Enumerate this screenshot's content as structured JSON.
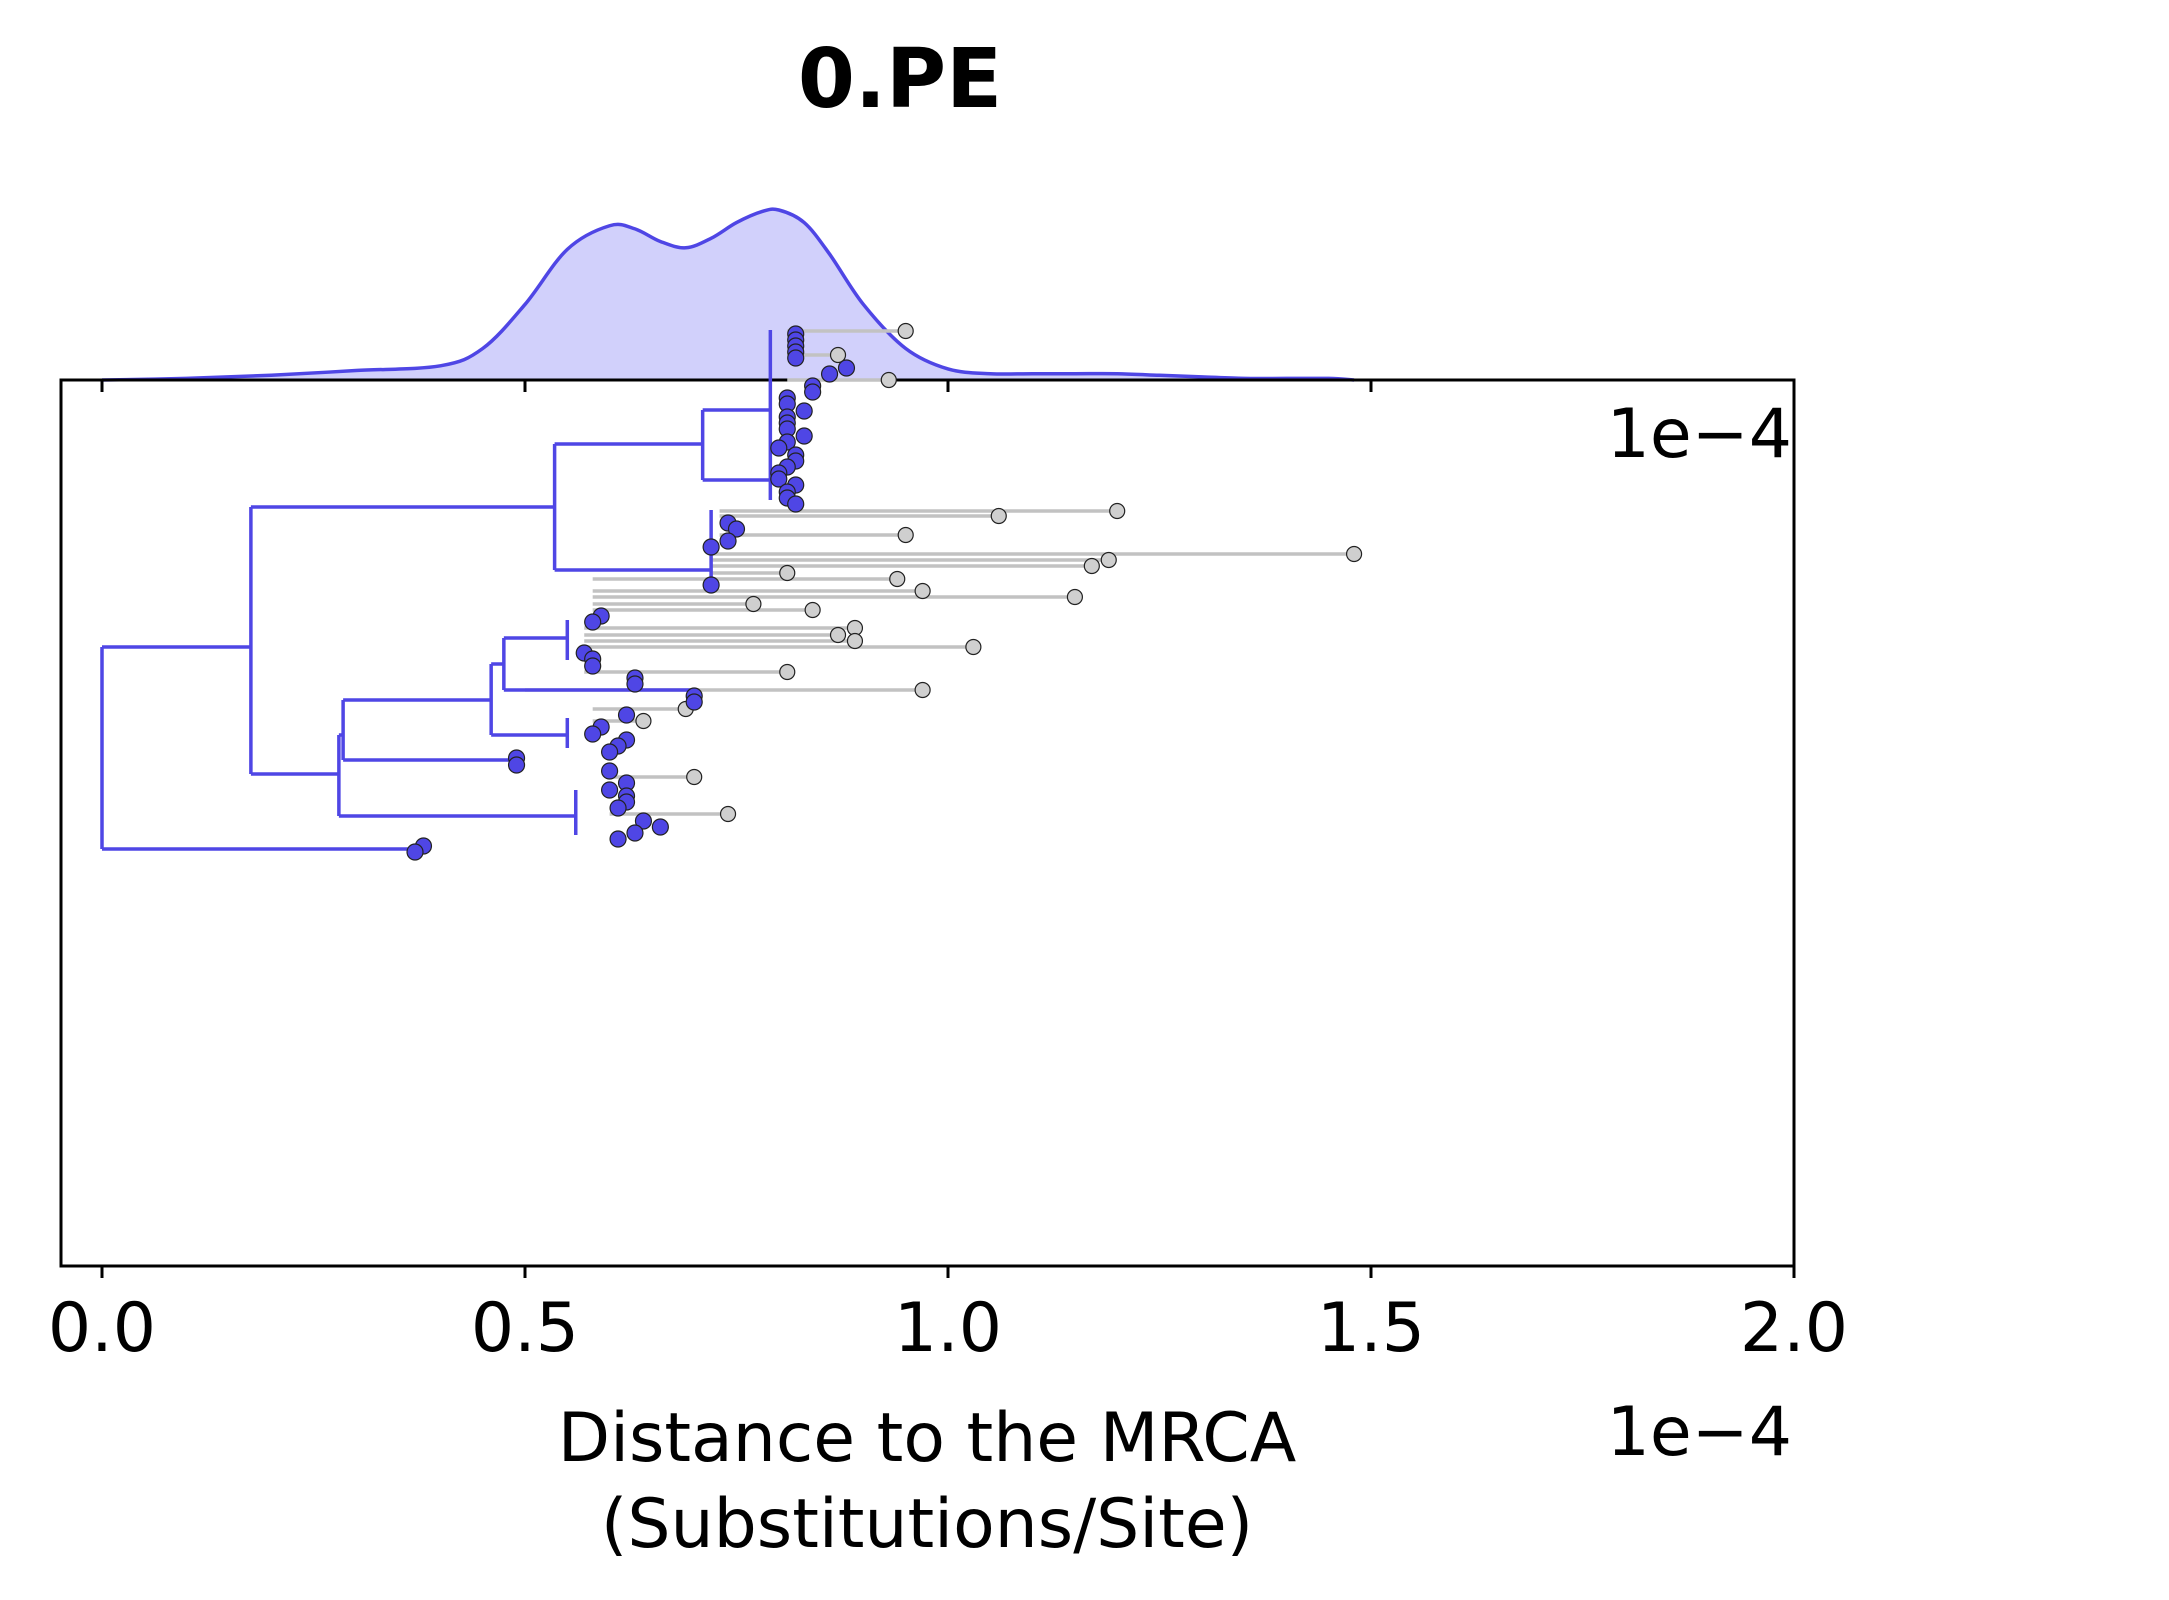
{
  "chart_data": {
    "type": "scatter",
    "subtype": "phylogenetic-tree-with-density",
    "title": "0.PE",
    "xlabel": [
      "Distance to the MRCA",
      "(Substitutions/Site)"
    ],
    "x_scale_label": "1e−4",
    "x_scale_label_top": "1e−4",
    "xlim": [
      -0.05,
      2.0
    ],
    "xticks": [
      0.0,
      0.5,
      1.0,
      1.5,
      2.0
    ],
    "xtick_labels": [
      "0.0",
      "0.5",
      "1.0",
      "1.5",
      "2.0"
    ],
    "grid": false,
    "colors": {
      "highlight": "#4f46e5",
      "highlight_fill": "#d1d0fb",
      "other": "#c2c2c2",
      "other_point": "#cfcfcf"
    },
    "density": {
      "x": [
        0.0,
        0.1,
        0.2,
        0.3,
        0.4,
        0.45,
        0.5,
        0.55,
        0.6,
        0.63,
        0.66,
        0.69,
        0.72,
        0.75,
        0.78,
        0.8,
        0.83,
        0.86,
        0.9,
        0.95,
        1.0,
        1.05,
        1.1,
        1.15,
        1.2,
        1.25,
        1.3,
        1.35,
        1.4,
        1.45,
        1.48
      ],
      "y": [
        0.0,
        0.01,
        0.03,
        0.06,
        0.09,
        0.2,
        0.48,
        0.83,
        0.98,
        0.96,
        0.88,
        0.84,
        0.9,
        1.0,
        1.07,
        1.08,
        1.0,
        0.8,
        0.48,
        0.2,
        0.07,
        0.04,
        0.04,
        0.04,
        0.04,
        0.03,
        0.02,
        0.01,
        0.01,
        0.01,
        0.0
      ]
    },
    "tree": {
      "highlight_segments": [
        {
          "x1": 0.0,
          "y1": 647,
          "x2": 0.0,
          "y2": 849
        },
        {
          "x1": 0.0,
          "y1": 647,
          "x2": 0.176,
          "y2": 647
        },
        {
          "x1": 0.0,
          "y1": 849,
          "x2": 0.38,
          "y2": 849
        },
        {
          "x1": 0.176,
          "y1": 507,
          "x2": 0.176,
          "y2": 774
        },
        {
          "x1": 0.176,
          "y1": 507,
          "x2": 0.535,
          "y2": 507
        },
        {
          "x1": 0.176,
          "y1": 774,
          "x2": 0.28,
          "y2": 774
        },
        {
          "x1": 0.535,
          "y1": 444,
          "x2": 0.535,
          "y2": 570
        },
        {
          "x1": 0.535,
          "y1": 444,
          "x2": 0.71,
          "y2": 444
        },
        {
          "x1": 0.535,
          "y1": 570,
          "x2": 0.72,
          "y2": 570
        },
        {
          "x1": 0.71,
          "y1": 410,
          "x2": 0.71,
          "y2": 480
        },
        {
          "x1": 0.71,
          "y1": 410,
          "x2": 0.79,
          "y2": 410
        },
        {
          "x1": 0.71,
          "y1": 480,
          "x2": 0.79,
          "y2": 480
        },
        {
          "x1": 0.79,
          "y1": 330,
          "x2": 0.79,
          "y2": 500
        },
        {
          "x1": 0.72,
          "y1": 510,
          "x2": 0.72,
          "y2": 585
        },
        {
          "x1": 0.28,
          "y1": 735,
          "x2": 0.28,
          "y2": 816
        },
        {
          "x1": 0.28,
          "y1": 735,
          "x2": 0.285,
          "y2": 735
        },
        {
          "x1": 0.285,
          "y1": 700,
          "x2": 0.285,
          "y2": 760
        },
        {
          "x1": 0.285,
          "y1": 700,
          "x2": 0.46,
          "y2": 700
        },
        {
          "x1": 0.285,
          "y1": 760,
          "x2": 0.49,
          "y2": 760
        },
        {
          "x1": 0.28,
          "y1": 816,
          "x2": 0.56,
          "y2": 816
        },
        {
          "x1": 0.46,
          "y1": 664,
          "x2": 0.46,
          "y2": 735
        },
        {
          "x1": 0.46,
          "y1": 664,
          "x2": 0.475,
          "y2": 664
        },
        {
          "x1": 0.475,
          "y1": 638,
          "x2": 0.475,
          "y2": 690
        },
        {
          "x1": 0.475,
          "y1": 638,
          "x2": 0.55,
          "y2": 638
        },
        {
          "x1": 0.475,
          "y1": 690,
          "x2": 0.7,
          "y2": 690
        },
        {
          "x1": 0.46,
          "y1": 735,
          "x2": 0.55,
          "y2": 735
        },
        {
          "x1": 0.55,
          "y1": 620,
          "x2": 0.55,
          "y2": 660
        },
        {
          "x1": 0.55,
          "y1": 718,
          "x2": 0.55,
          "y2": 748
        },
        {
          "x1": 0.56,
          "y1": 790,
          "x2": 0.56,
          "y2": 835
        }
      ],
      "other_segments": [
        {
          "x1": 0.81,
          "y1": 331,
          "x2": 0.95,
          "y2": 331
        },
        {
          "x1": 0.81,
          "y1": 355,
          "x2": 0.87,
          "y2": 355
        },
        {
          "x1": 0.81,
          "y1": 380,
          "x2": 0.93,
          "y2": 380
        },
        {
          "x1": 0.73,
          "y1": 511,
          "x2": 1.2,
          "y2": 511
        },
        {
          "x1": 0.73,
          "y1": 516,
          "x2": 1.06,
          "y2": 516
        },
        {
          "x1": 0.73,
          "y1": 535,
          "x2": 0.95,
          "y2": 535
        },
        {
          "x1": 0.72,
          "y1": 554,
          "x2": 1.48,
          "y2": 554
        },
        {
          "x1": 0.72,
          "y1": 560,
          "x2": 1.19,
          "y2": 560
        },
        {
          "x1": 0.72,
          "y1": 566,
          "x2": 1.17,
          "y2": 566
        },
        {
          "x1": 0.72,
          "y1": 573,
          "x2": 0.81,
          "y2": 573
        },
        {
          "x1": 0.58,
          "y1": 579,
          "x2": 0.94,
          "y2": 579
        },
        {
          "x1": 0.58,
          "y1": 591,
          "x2": 0.97,
          "y2": 591
        },
        {
          "x1": 0.58,
          "y1": 597,
          "x2": 1.15,
          "y2": 597
        },
        {
          "x1": 0.58,
          "y1": 604,
          "x2": 0.77,
          "y2": 604
        },
        {
          "x1": 0.58,
          "y1": 610,
          "x2": 0.84,
          "y2": 610
        },
        {
          "x1": 0.57,
          "y1": 628,
          "x2": 0.89,
          "y2": 628
        },
        {
          "x1": 0.57,
          "y1": 635,
          "x2": 0.87,
          "y2": 635
        },
        {
          "x1": 0.57,
          "y1": 641,
          "x2": 0.89,
          "y2": 641
        },
        {
          "x1": 0.57,
          "y1": 647,
          "x2": 1.03,
          "y2": 647
        },
        {
          "x1": 0.57,
          "y1": 672,
          "x2": 0.81,
          "y2": 672
        },
        {
          "x1": 0.5,
          "y1": 690,
          "x2": 0.97,
          "y2": 690
        },
        {
          "x1": 0.58,
          "y1": 709,
          "x2": 0.69,
          "y2": 709
        },
        {
          "x1": 0.58,
          "y1": 721,
          "x2": 0.64,
          "y2": 721
        },
        {
          "x1": 0.6,
          "y1": 777,
          "x2": 0.7,
          "y2": 777
        },
        {
          "x1": 0.6,
          "y1": 814,
          "x2": 0.74,
          "y2": 814
        }
      ],
      "highlight_tips": [
        {
          "x": 0.82,
          "y": 334
        },
        {
          "x": 0.82,
          "y": 340
        },
        {
          "x": 0.82,
          "y": 346
        },
        {
          "x": 0.82,
          "y": 352
        },
        {
          "x": 0.82,
          "y": 358
        },
        {
          "x": 0.86,
          "y": 374
        },
        {
          "x": 0.88,
          "y": 368
        },
        {
          "x": 0.84,
          "y": 386
        },
        {
          "x": 0.84,
          "y": 392
        },
        {
          "x": 0.81,
          "y": 398
        },
        {
          "x": 0.81,
          "y": 404
        },
        {
          "x": 0.83,
          "y": 411
        },
        {
          "x": 0.81,
          "y": 417
        },
        {
          "x": 0.81,
          "y": 423
        },
        {
          "x": 0.81,
          "y": 429
        },
        {
          "x": 0.83,
          "y": 436
        },
        {
          "x": 0.81,
          "y": 442
        },
        {
          "x": 0.8,
          "y": 448
        },
        {
          "x": 0.82,
          "y": 455
        },
        {
          "x": 0.82,
          "y": 461
        },
        {
          "x": 0.81,
          "y": 467
        },
        {
          "x": 0.8,
          "y": 473
        },
        {
          "x": 0.8,
          "y": 479
        },
        {
          "x": 0.82,
          "y": 485
        },
        {
          "x": 0.81,
          "y": 492
        },
        {
          "x": 0.81,
          "y": 498
        },
        {
          "x": 0.82,
          "y": 504
        },
        {
          "x": 0.74,
          "y": 523
        },
        {
          "x": 0.75,
          "y": 529
        },
        {
          "x": 0.74,
          "y": 541
        },
        {
          "x": 0.72,
          "y": 547
        },
        {
          "x": 0.72,
          "y": 585
        },
        {
          "x": 0.59,
          "y": 616
        },
        {
          "x": 0.58,
          "y": 622
        },
        {
          "x": 0.57,
          "y": 653
        },
        {
          "x": 0.58,
          "y": 659
        },
        {
          "x": 0.58,
          "y": 666
        },
        {
          "x": 0.63,
          "y": 678
        },
        {
          "x": 0.63,
          "y": 684
        },
        {
          "x": 0.7,
          "y": 696
        },
        {
          "x": 0.7,
          "y": 702
        },
        {
          "x": 0.62,
          "y": 715
        },
        {
          "x": 0.59,
          "y": 727
        },
        {
          "x": 0.58,
          "y": 734
        },
        {
          "x": 0.62,
          "y": 740
        },
        {
          "x": 0.61,
          "y": 746
        },
        {
          "x": 0.6,
          "y": 752
        },
        {
          "x": 0.49,
          "y": 758
        },
        {
          "x": 0.49,
          "y": 765
        },
        {
          "x": 0.6,
          "y": 771
        },
        {
          "x": 0.62,
          "y": 783
        },
        {
          "x": 0.6,
          "y": 790
        },
        {
          "x": 0.62,
          "y": 796
        },
        {
          "x": 0.62,
          "y": 802
        },
        {
          "x": 0.61,
          "y": 808
        },
        {
          "x": 0.64,
          "y": 821
        },
        {
          "x": 0.66,
          "y": 827
        },
        {
          "x": 0.63,
          "y": 833
        },
        {
          "x": 0.61,
          "y": 839
        },
        {
          "x": 0.38,
          "y": 846
        },
        {
          "x": 0.37,
          "y": 852
        }
      ],
      "other_tips": [
        {
          "x": 0.95,
          "y": 331
        },
        {
          "x": 0.87,
          "y": 355
        },
        {
          "x": 0.93,
          "y": 380
        },
        {
          "x": 1.2,
          "y": 511
        },
        {
          "x": 1.06,
          "y": 516
        },
        {
          "x": 0.95,
          "y": 535
        },
        {
          "x": 1.48,
          "y": 554
        },
        {
          "x": 1.19,
          "y": 560
        },
        {
          "x": 1.17,
          "y": 566
        },
        {
          "x": 0.81,
          "y": 573
        },
        {
          "x": 0.94,
          "y": 579
        },
        {
          "x": 0.97,
          "y": 591
        },
        {
          "x": 1.15,
          "y": 597
        },
        {
          "x": 0.77,
          "y": 604
        },
        {
          "x": 0.84,
          "y": 610
        },
        {
          "x": 0.89,
          "y": 628
        },
        {
          "x": 0.87,
          "y": 635
        },
        {
          "x": 0.89,
          "y": 641
        },
        {
          "x": 1.03,
          "y": 647
        },
        {
          "x": 0.81,
          "y": 672
        },
        {
          "x": 0.97,
          "y": 690
        },
        {
          "x": 0.69,
          "y": 709
        },
        {
          "x": 0.64,
          "y": 721
        },
        {
          "x": 0.7,
          "y": 777
        },
        {
          "x": 0.74,
          "y": 814
        }
      ]
    }
  }
}
